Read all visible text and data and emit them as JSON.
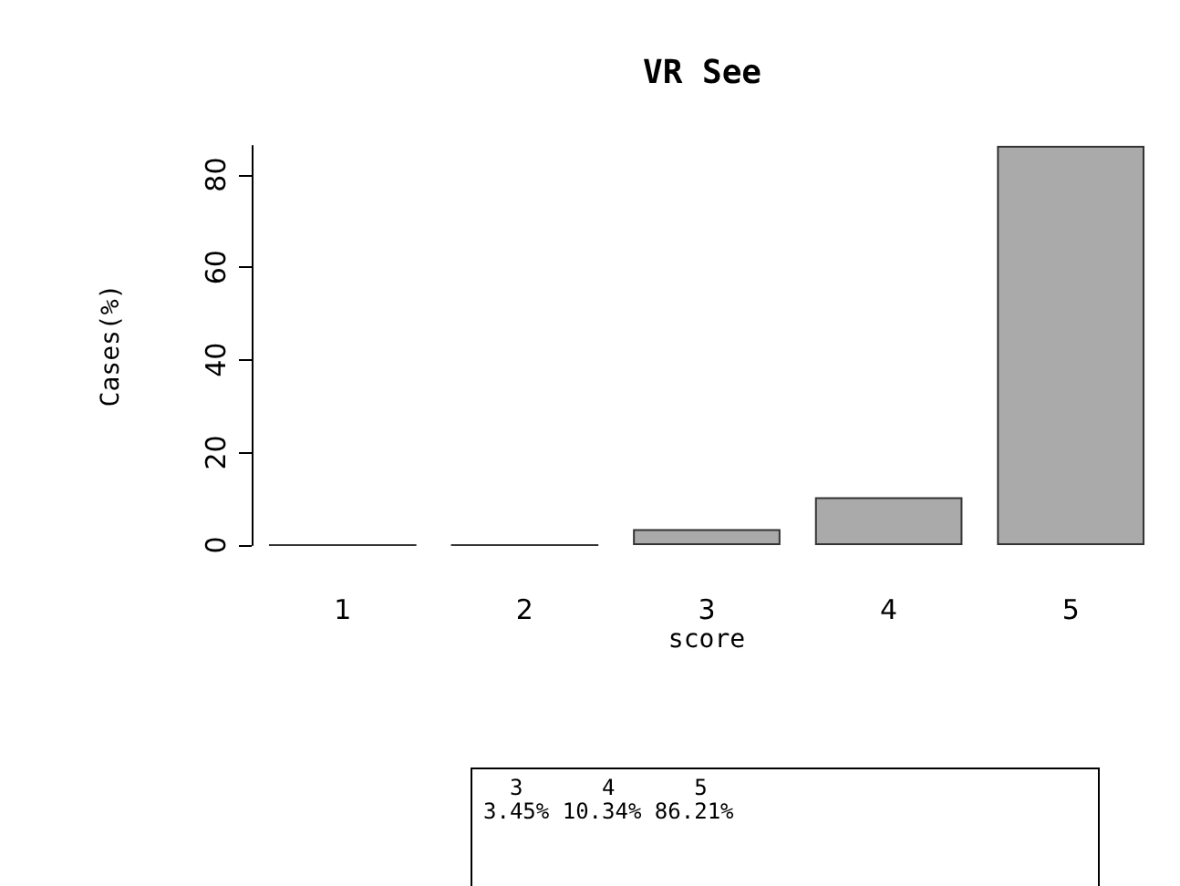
{
  "chart_data": {
    "type": "bar",
    "title": "VR See",
    "xlabel": "score",
    "ylabel": "Cases(%)",
    "categories": [
      "1",
      "2",
      "3",
      "4",
      "5"
    ],
    "values": [
      0,
      0,
      3.45,
      10.34,
      86.21
    ],
    "annotations": [
      "  3      4      5",
      "3.45% 10.34% 86.21%"
    ],
    "color": "#aaaaaa",
    "ylim": [
      0,
      86.21
    ],
    "yticks": [
      0,
      20,
      40,
      60,
      80
    ],
    "grid": false
  }
}
